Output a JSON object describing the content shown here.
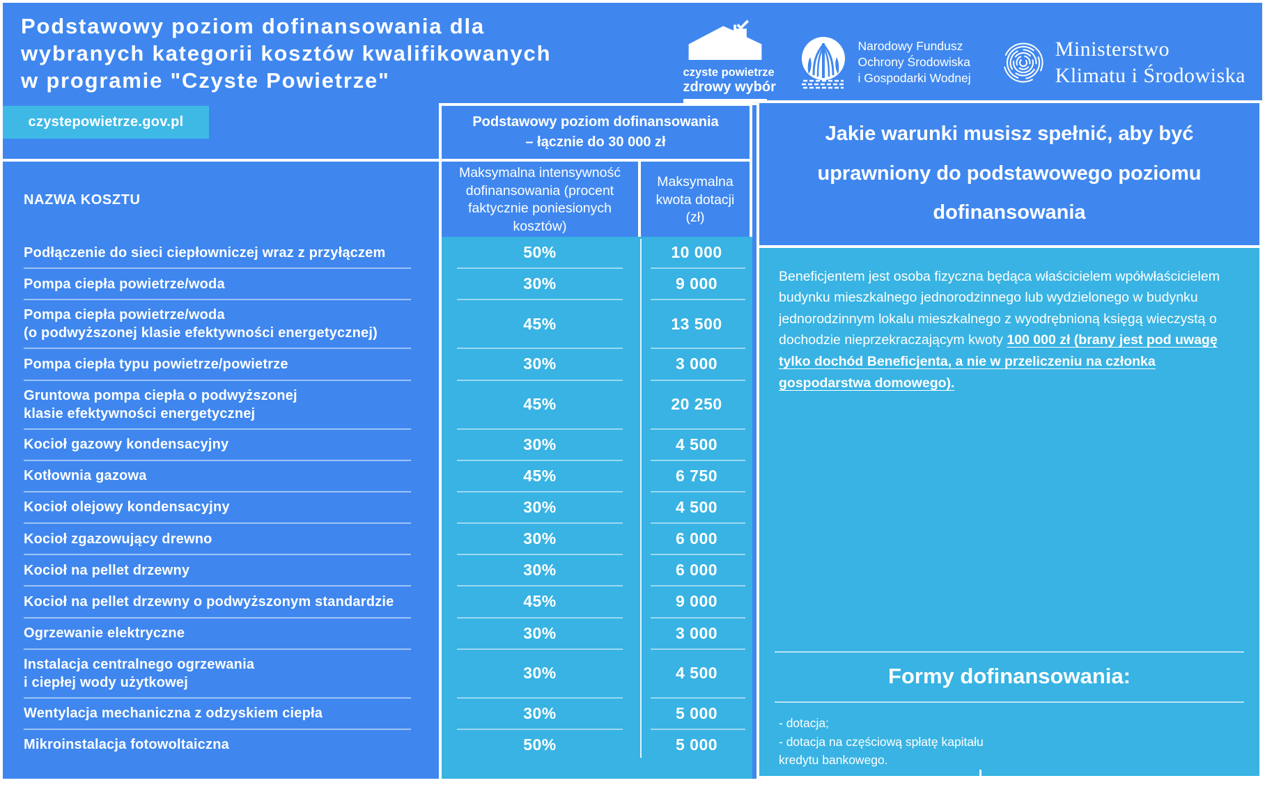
{
  "header": {
    "title_lines": [
      "Podstawowy poziom dofinansowania dla",
      "wybranych kategorii kosztów kwalifikowanych",
      "w programie \"Czyste Powietrze\""
    ],
    "website_badge": "czystepowietrze.gov.pl"
  },
  "logos": {
    "czyste_powietrze": {
      "icon": "house-check-icon",
      "line1": "czyste powietrze",
      "line2": "zdrowy wybór"
    },
    "nfosigw": {
      "icon": "tree-circle-icon",
      "lines": [
        "Narodowy Fundusz",
        "Ochrony Środowiska",
        "i Gospodarki Wodnej"
      ]
    },
    "ministerstwo": {
      "icon": "fingerprint-icon",
      "lines": [
        "Ministerstwo",
        "Klimatu i Środowiska"
      ]
    }
  },
  "table": {
    "group_header_lines": [
      "Podstawowy poziom dofinansowania",
      "– łącznie do 30 000 zł"
    ],
    "columns": {
      "name": "NAZWA KOSZTU",
      "intensity": "Maksymalna intensywność dofinansowania (procent faktycznie poniesionych kosztów)",
      "amount": "Maksymalna kwota dotacji (zł)"
    },
    "rows": [
      {
        "name": "Podłączenie do sieci ciepłowniczej wraz z przyłączem",
        "intensity": "50%",
        "amount": "10 000",
        "lines": 1
      },
      {
        "name": "Pompa ciepła powietrze/woda",
        "intensity": "30%",
        "amount": "9 000",
        "lines": 1
      },
      {
        "name": "Pompa ciepła powietrze/woda\n(o podwyższonej klasie efektywności energetycznej)",
        "intensity": "45%",
        "amount": "13 500",
        "lines": 2
      },
      {
        "name": "Pompa ciepła typu powietrze/powietrze",
        "intensity": "30%",
        "amount": "3 000",
        "lines": 1
      },
      {
        "name": "Gruntowa pompa ciepła o podwyższonej\nklasie efektywności energetycznej",
        "intensity": "45%",
        "amount": "20 250",
        "lines": 2
      },
      {
        "name": "Kocioł gazowy kondensacyjny",
        "intensity": "30%",
        "amount": "4 500",
        "lines": 1
      },
      {
        "name": "Kotłownia gazowa",
        "intensity": "45%",
        "amount": "6 750",
        "lines": 1
      },
      {
        "name": "Kocioł olejowy kondensacyjny",
        "intensity": "30%",
        "amount": "4 500",
        "lines": 1
      },
      {
        "name": "Kocioł zgazowujący drewno",
        "intensity": "30%",
        "amount": "6 000",
        "lines": 1
      },
      {
        "name": "Kocioł na pellet drzewny",
        "intensity": "30%",
        "amount": "6 000",
        "lines": 1
      },
      {
        "name": "Kocioł na pellet drzewny o podwyższonym standardzie",
        "intensity": "45%",
        "amount": "9 000",
        "lines": 1
      },
      {
        "name": "Ogrzewanie elektryczne",
        "intensity": "30%",
        "amount": "3 000",
        "lines": 1
      },
      {
        "name": "Instalacja centralnego ogrzewania\ni ciepłej wody użytkowej",
        "intensity": "30%",
        "amount": "4 500",
        "lines": 2
      },
      {
        "name": "Wentylacja mechaniczna z odzyskiem ciepła",
        "intensity": "30%",
        "amount": "5 000",
        "lines": 1
      },
      {
        "name": "Mikroinstalacja fotowoltaiczna",
        "intensity": "50%",
        "amount": "5 000",
        "lines": 1
      }
    ]
  },
  "panel": {
    "title": "Jakie warunki musisz spełnić, aby być uprawniony do podstawowego poziomu dofinansowania",
    "body_regular": "Beneficjentem jest osoba fizyczna będąca właścicielem wpółwłaścicielem budynku mieszkalnego jednorodzinnego lub wydzielonego w budynku jednorodzinnym lokalu mieszkalnego z wyodrębnioną księgą wieczystą o dochodzie nieprzekraczającym kwoty ",
    "body_emphasis": "100 000 zł (brany jest pod uwagę tylko dochód Beneficjenta, a nie w przeliczeniu na członka gospodarstwa domowego).",
    "forms_title": "Formy dofinansowania:",
    "forms_lines": [
      "- dotacja;",
      "- dotacja na częściową spłatę kapitału",
      "kredytu bankowego."
    ]
  },
  "colors": {
    "blue": "#3F87EF",
    "cyan": "#38B3E3",
    "badge_cyan": "#3EB9E6",
    "white": "#FFFFFF"
  }
}
